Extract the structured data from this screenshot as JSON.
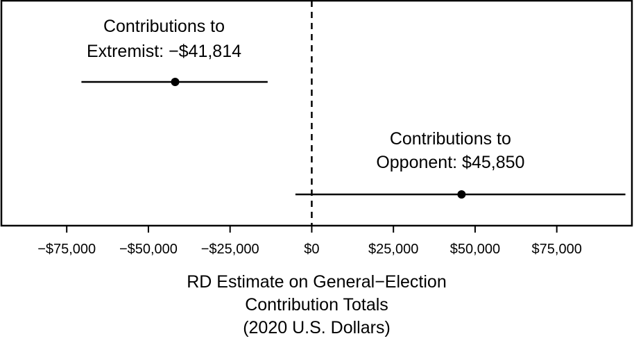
{
  "chart_data": {
    "type": "scatter",
    "title": "",
    "xlabel_lines": [
      "RD Estimate on General−Election",
      "Contribution Totals",
      "(2020 U.S. Dollars)"
    ],
    "ylabel": "",
    "xlim": [
      -95000,
      98000
    ],
    "xticks": [
      {
        "value": -75000,
        "label": "−$75,000"
      },
      {
        "value": -50000,
        "label": "−$50,000"
      },
      {
        "value": -25000,
        "label": "−$25,000"
      },
      {
        "value": 0,
        "label": "$0"
      },
      {
        "value": 25000,
        "label": "$25,000"
      },
      {
        "value": 50000,
        "label": "$50,000"
      },
      {
        "value": 75000,
        "label": "$75,000"
      }
    ],
    "reference_line": {
      "x": 0,
      "style": "dashed"
    },
    "grid": false,
    "points": [
      {
        "estimate": -41814,
        "ci_low": -70500,
        "ci_high": -13500,
        "label_lines": [
          "Contributions to",
          "Extremist: −$41,814"
        ]
      },
      {
        "estimate": 45850,
        "ci_low": -5000,
        "ci_high": 96000,
        "label_lines": [
          "Contributions to",
          "Opponent: $45,850"
        ]
      }
    ]
  }
}
